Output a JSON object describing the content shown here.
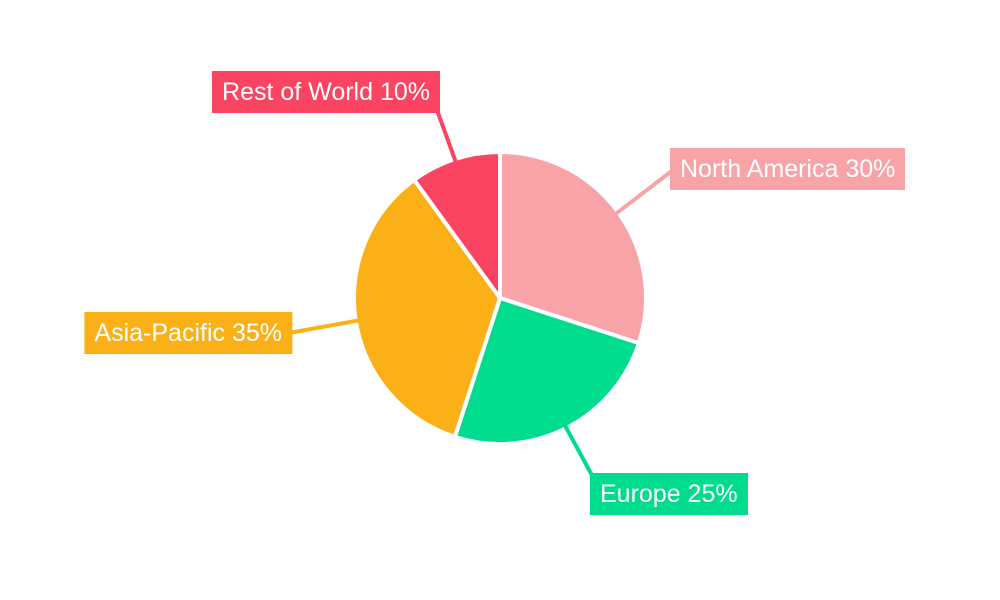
{
  "chart_data": {
    "type": "pie",
    "title": "",
    "legend": "none",
    "background": "#FFFFFF",
    "start_angle_deg": 0,
    "direction": "clockwise",
    "unit": "%",
    "categories": [
      "North America",
      "Europe",
      "Asia-Pacific",
      "Rest of World"
    ],
    "values": [
      30,
      25,
      35,
      10
    ],
    "slices": [
      {
        "name": "North America",
        "value": 30,
        "label": "North America 30%",
        "color": "#F8A3A8"
      },
      {
        "name": "Europe",
        "value": 25,
        "label": "Europe 25%",
        "color": "#00DC8E"
      },
      {
        "name": "Asia-Pacific",
        "value": 35,
        "label": "Asia-Pacific 35%",
        "color": "#FBB017"
      },
      {
        "name": "Rest of World",
        "value": 10,
        "label": "Rest of World 10%",
        "color": "#FB4362"
      }
    ],
    "label_style": {
      "text_color": "#FFFFFF"
    }
  }
}
